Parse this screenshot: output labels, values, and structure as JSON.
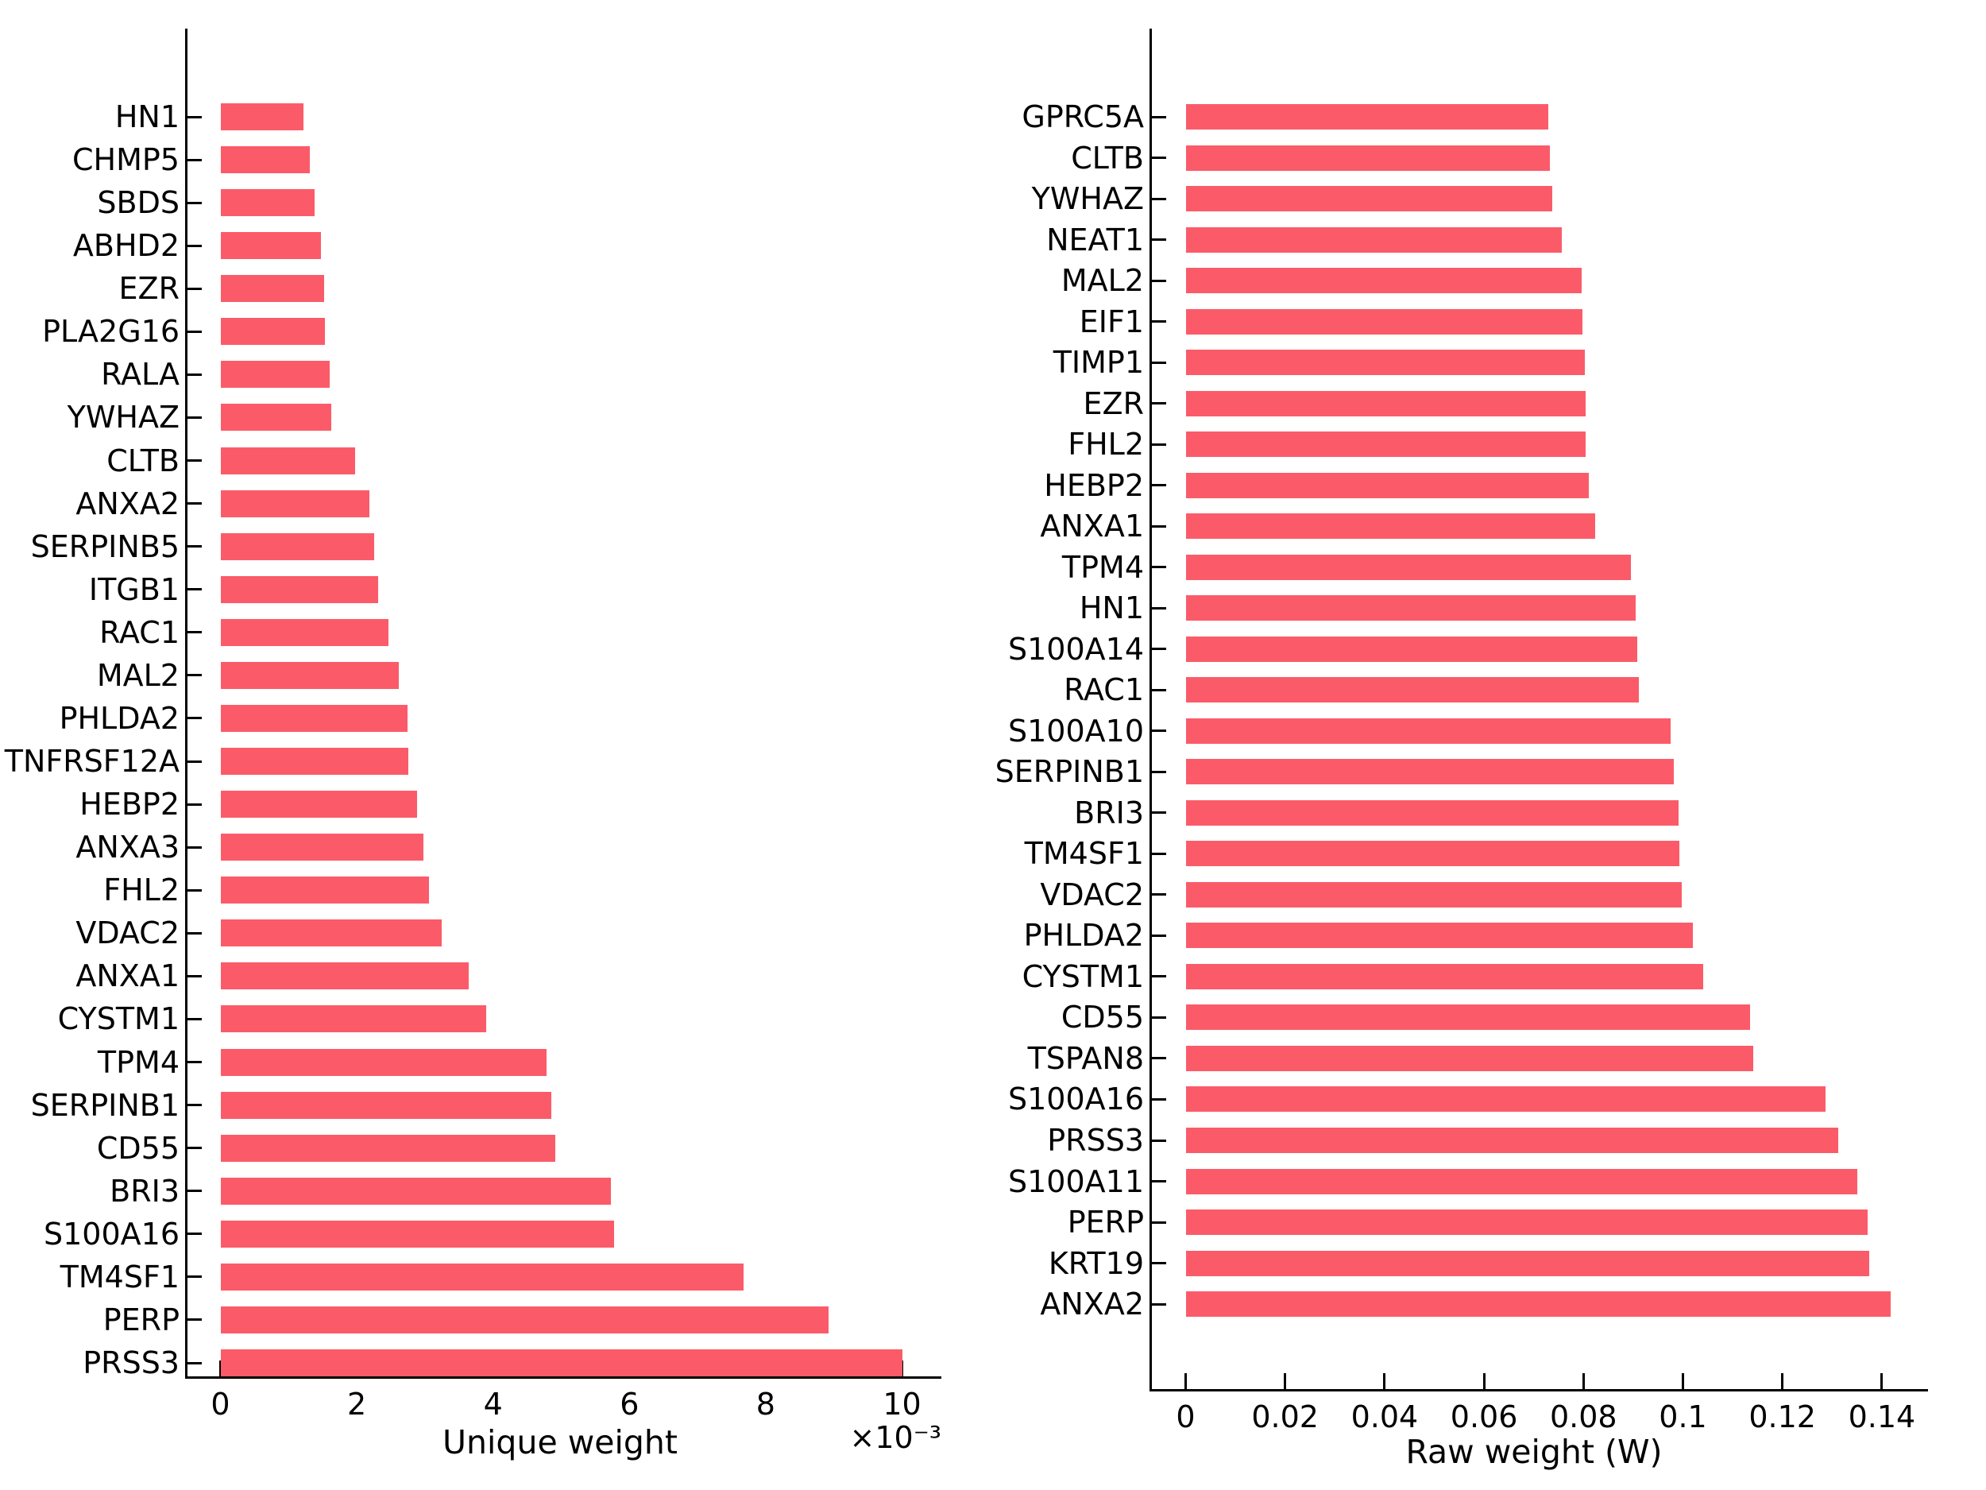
{
  "figure": {
    "background": "#ffffff",
    "bar_color": "#FB5B69",
    "axis_color": "#000000"
  },
  "chart_data": [
    {
      "id": "unique-weight-chart",
      "type": "bar",
      "orientation": "horizontal",
      "xlabel": "Unique weight",
      "x_offset_label": "×10⁻³",
      "x_ticks": [
        0,
        0.002,
        0.004,
        0.006,
        0.008,
        0.01
      ],
      "x_tick_labels": [
        "0",
        "2",
        "4",
        "6",
        "8",
        "10"
      ],
      "xlim": [
        0,
        0.01058
      ],
      "grid": false,
      "legend": null,
      "categories": [
        "HN1",
        "CHMP5",
        "SBDS",
        "ABHD2",
        "EZR",
        "PLA2G16",
        "RALA",
        "YWHAZ",
        "CLTB",
        "ANXA2",
        "SERPINB5",
        "ITGB1",
        "RAC1",
        "MAL2",
        "PHLDA2",
        "TNFRSF12A",
        "HEBP2",
        "ANXA3",
        "FHL2",
        "VDAC2",
        "ANXA1",
        "CYSTM1",
        "TPM4",
        "SERPINB1",
        "CD55",
        "BRI3",
        "S100A16",
        "TM4SF1",
        "PERP",
        "PRSS3"
      ],
      "values": [
        0.00122,
        0.00131,
        0.00138,
        0.00147,
        0.00152,
        0.00153,
        0.0016,
        0.00163,
        0.00198,
        0.00219,
        0.00225,
        0.00231,
        0.00247,
        0.00262,
        0.00274,
        0.00276,
        0.00289,
        0.00298,
        0.00306,
        0.00325,
        0.00364,
        0.0039,
        0.00478,
        0.00486,
        0.00491,
        0.00573,
        0.00578,
        0.00768,
        0.00892,
        0.01
      ]
    },
    {
      "id": "raw-weight-chart",
      "type": "bar",
      "orientation": "horizontal",
      "xlabel": "Raw weight (W)",
      "x_offset_label": "",
      "x_ticks": [
        0,
        0.02,
        0.04,
        0.06,
        0.08,
        0.1,
        0.12,
        0.14
      ],
      "x_tick_labels": [
        "0",
        "0.02",
        "0.04",
        "0.06",
        "0.08",
        "0.1",
        "0.12",
        "0.14"
      ],
      "xlim": [
        0,
        0.1493
      ],
      "grid": false,
      "legend": null,
      "categories": [
        "GPRC5A",
        "CLTB",
        "YWHAZ",
        "NEAT1",
        "MAL2",
        "EIF1",
        "TIMP1",
        "EZR",
        "FHL2",
        "HEBP2",
        "ANXA1",
        "TPM4",
        "HN1",
        "S100A14",
        "RAC1",
        "S100A10",
        "SERPINB1",
        "BRI3",
        "TM4SF1",
        "VDAC2",
        "PHLDA2",
        "CYSTM1",
        "CD55",
        "TSPAN8",
        "S100A16",
        "PRSS3",
        "S100A11",
        "PERP",
        "KRT19",
        "ANXA2"
      ],
      "values": [
        0.073,
        0.0732,
        0.0738,
        0.0757,
        0.0797,
        0.0798,
        0.0803,
        0.0804,
        0.0805,
        0.081,
        0.0824,
        0.0896,
        0.0905,
        0.0908,
        0.0911,
        0.0976,
        0.0981,
        0.0991,
        0.0993,
        0.0998,
        0.102,
        0.1041,
        0.1135,
        0.1141,
        0.1286,
        0.1313,
        0.135,
        0.1371,
        0.1374,
        0.1418
      ]
    }
  ]
}
